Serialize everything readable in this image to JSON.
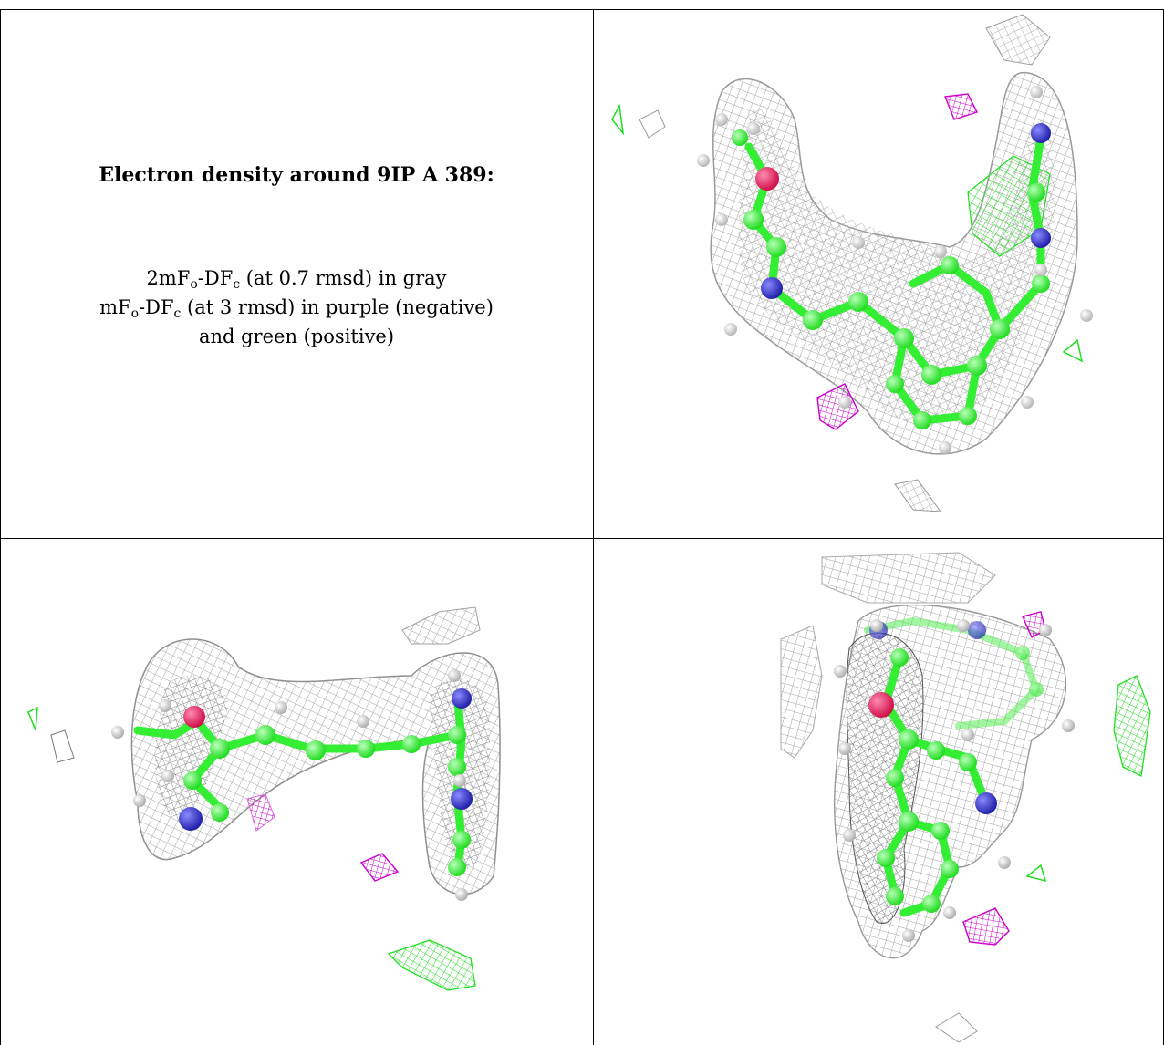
{
  "caption": {
    "title": "Electron density around 9IP A 389:",
    "line1_prefix": "2mF",
    "line1_sub_o": "o",
    "line1_mid": "-DF",
    "line1_sub_c": "c",
    "line1_suffix": " (at 0.7 rmsd) in gray",
    "line2_prefix": "mF",
    "line2_sub_o": "o",
    "line2_mid": "-DF",
    "line2_sub_c": "c",
    "line2_suffix": " (at 3 rmsd) in purple (negative)",
    "line3": "and green (positive)"
  },
  "colors": {
    "mesh_gray": "#9e9e9e",
    "carbon_green": "#33ee33",
    "nitrogen_blue": "#3333bb",
    "oxygen_red": "#e0245e",
    "negative_purple": "#cc00cc",
    "positive_green": "#22dd22",
    "hydrogen_white": "#e6e6e6"
  }
}
